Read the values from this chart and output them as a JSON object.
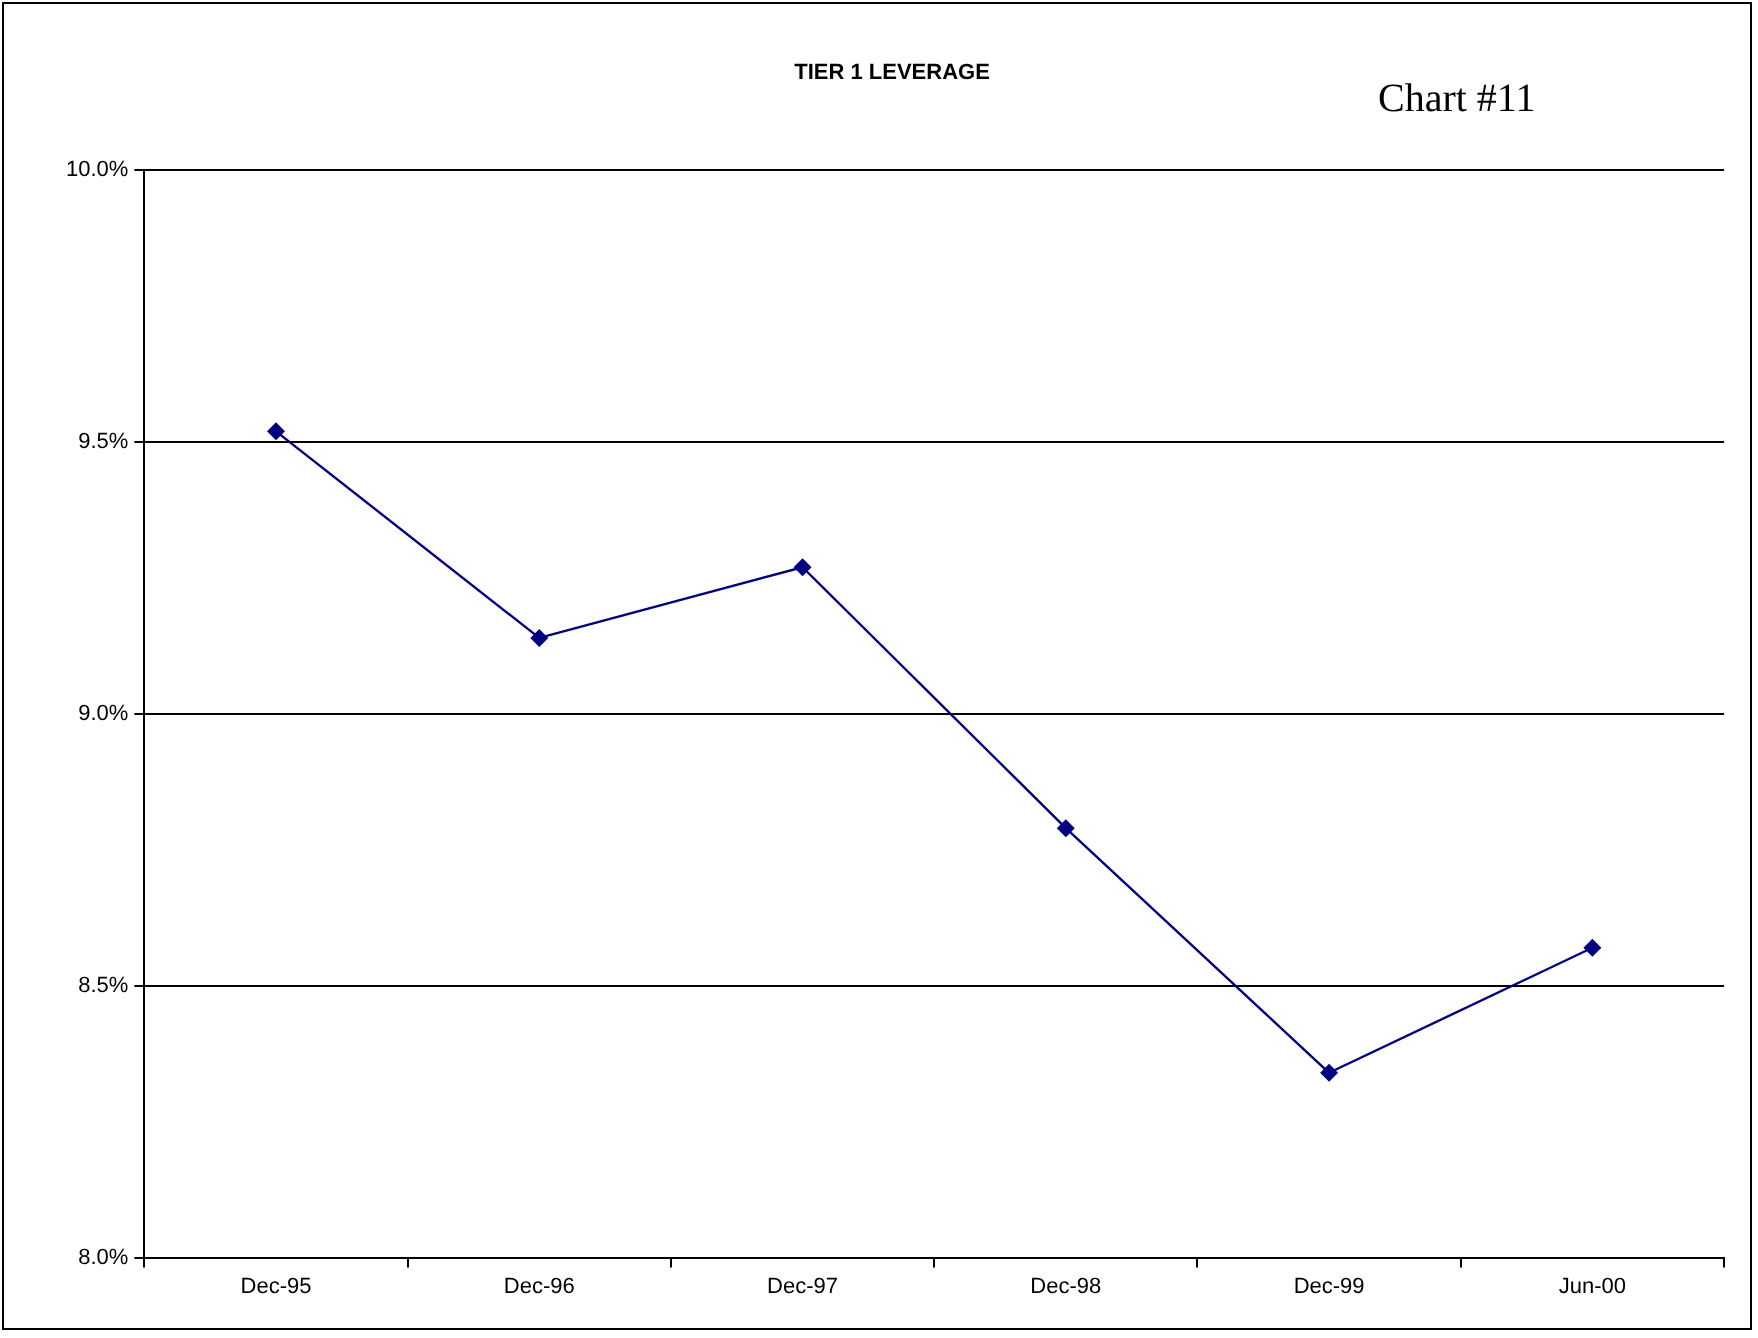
{
  "chart_data": {
    "type": "line",
    "title": "TIER 1 LEVERAGE",
    "annotations": [
      "Chart #11"
    ],
    "categories": [
      "Dec-95",
      "Dec-96",
      "Dec-97",
      "Dec-98",
      "Dec-99",
      "Jun-00"
    ],
    "series": [
      {
        "color": "#000080",
        "values": [
          9.52,
          9.14,
          9.27,
          8.79,
          8.34,
          8.57
        ]
      }
    ],
    "ylim": [
      8.0,
      10.0
    ],
    "yticks": [
      {
        "value": 8.0,
        "label": "8.0%"
      },
      {
        "value": 8.5,
        "label": "8.5%"
      },
      {
        "value": 9.0,
        "label": "9.0%"
      },
      {
        "value": 9.5,
        "label": "9.5%"
      },
      {
        "value": 10.0,
        "label": "10.0%"
      }
    ],
    "grid": "y",
    "legend": false,
    "marker": "diamond",
    "line_style": "solid"
  }
}
